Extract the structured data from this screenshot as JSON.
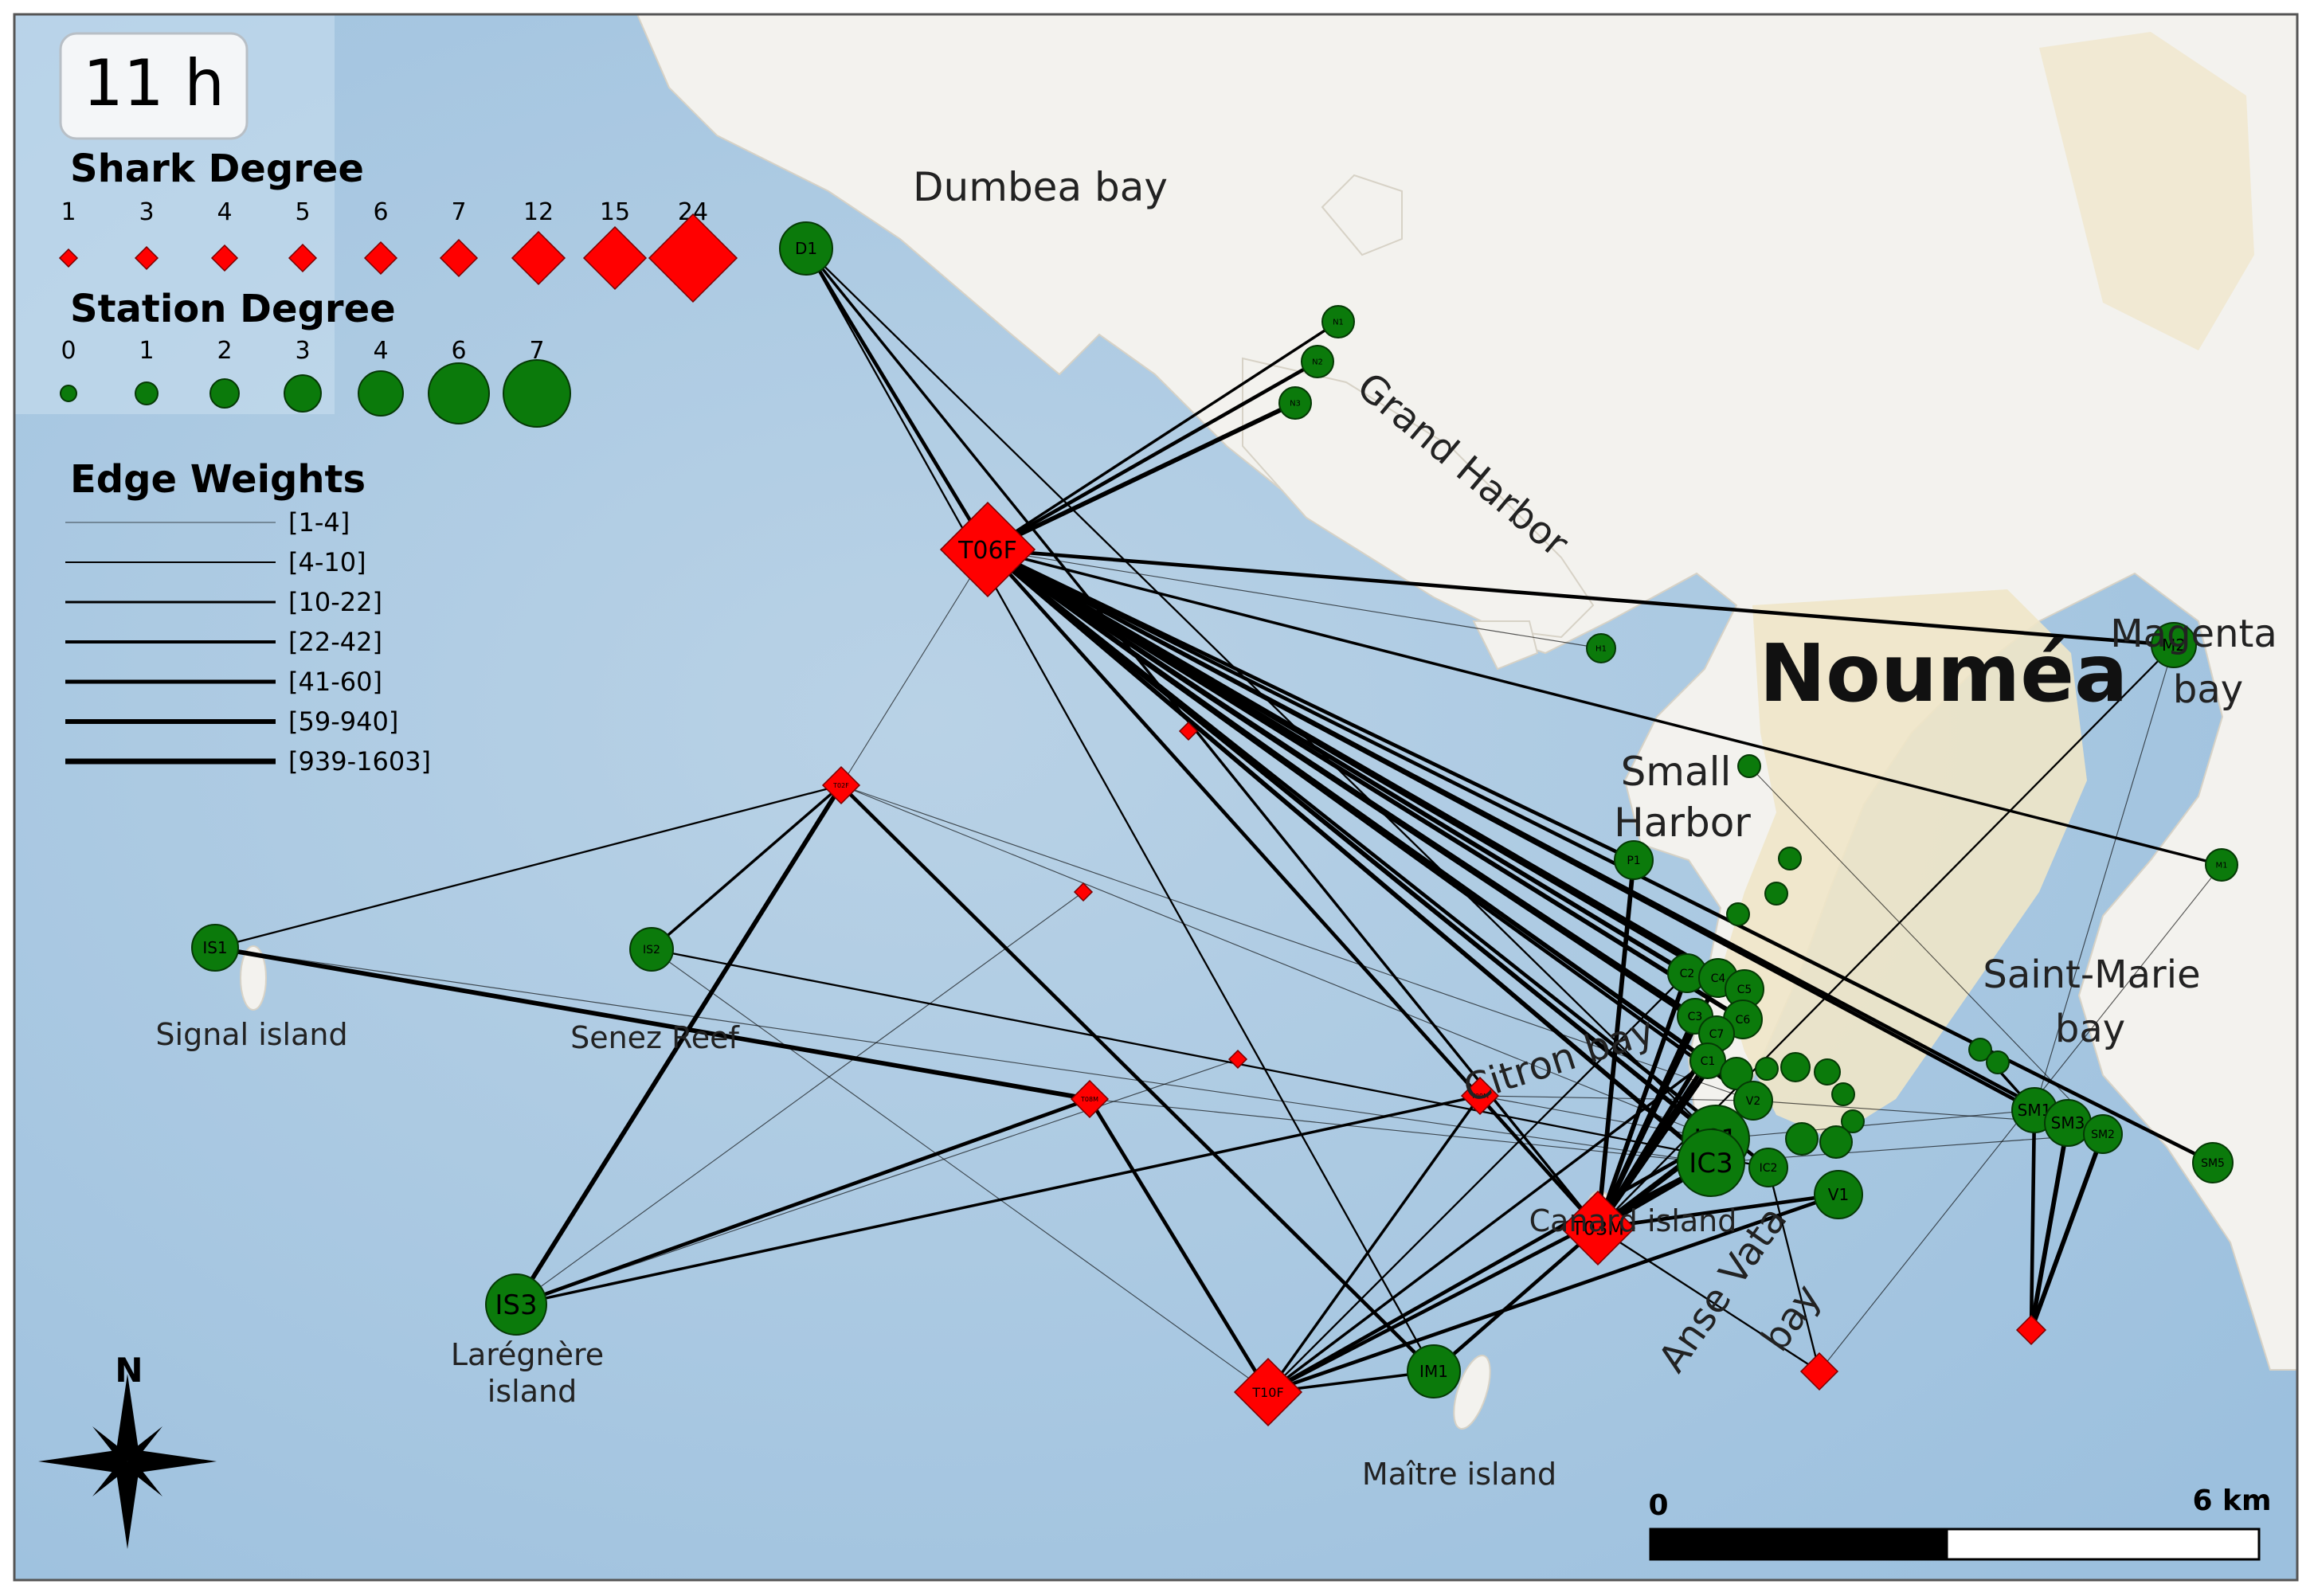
{
  "time_label": "11 h",
  "colors": {
    "shark": "#ff0000",
    "shark_stroke": "#7a0000",
    "station": "#0b7a0b",
    "station_stroke": "#053905",
    "sea": "#a9c8e2",
    "sea_deep": "#8fb6d8",
    "land": "#f2f1ec",
    "urban": "#eee3c0",
    "edge": "#000000"
  },
  "legend": {
    "shark": {
      "title": "Shark Degree",
      "items": [
        {
          "label": "1",
          "s": 22
        },
        {
          "label": "3",
          "s": 28
        },
        {
          "label": "4",
          "s": 32
        },
        {
          "label": "5",
          "s": 34
        },
        {
          "label": "6",
          "s": 40
        },
        {
          "label": "7",
          "s": 46
        },
        {
          "label": "12",
          "s": 66
        },
        {
          "label": "15",
          "s": 78
        },
        {
          "label": "24",
          "s": 110
        }
      ]
    },
    "station": {
      "title": "Station Degree",
      "items": [
        {
          "label": "0",
          "r": 10
        },
        {
          "label": "1",
          "r": 14
        },
        {
          "label": "2",
          "r": 18
        },
        {
          "label": "3",
          "r": 23
        },
        {
          "label": "4",
          "r": 28
        },
        {
          "label": "6",
          "r": 38
        },
        {
          "label": "7",
          "r": 42
        }
      ]
    },
    "edges": {
      "title": "Edge Weights",
      "items": [
        {
          "label": "[1-4]",
          "w": 1
        },
        {
          "label": "[4-10]",
          "w": 2
        },
        {
          "label": "[10-22]",
          "w": 3
        },
        {
          "label": "[22-42]",
          "w": 4
        },
        {
          "label": "[41-60]",
          "w": 5
        },
        {
          "label": "[59-940]",
          "w": 6
        },
        {
          "label": "[939-1603]",
          "w": 7
        }
      ]
    }
  },
  "places": [
    {
      "name": "Dumbea bay",
      "size": 50,
      "anchor": "middle"
    },
    {
      "name": "Grand Harbor",
      "size": 48,
      "anchor": "middle",
      "rotate": 40
    },
    {
      "name": "Nouméa",
      "size": 100,
      "anchor": "middle",
      "bold": true
    },
    {
      "name": "Magenta",
      "size": 48,
      "anchor": "middle"
    },
    {
      "name": "bay",
      "size": 48,
      "anchor": "middle"
    },
    {
      "name": "Small",
      "size": 50,
      "anchor": "middle"
    },
    {
      "name": "Harbor",
      "size": 50,
      "anchor": "middle"
    },
    {
      "name": "Saint-Marie",
      "size": 48,
      "anchor": "middle"
    },
    {
      "name": "bay",
      "size": 48,
      "anchor": "middle"
    },
    {
      "name": "Signal island",
      "size": 38,
      "anchor": "middle"
    },
    {
      "name": "Senez Reef",
      "size": 38,
      "anchor": "middle"
    },
    {
      "name": "Citron bay",
      "size": 48,
      "anchor": "middle",
      "rotate": -18
    },
    {
      "name": "Canard island",
      "size": 38,
      "anchor": "middle"
    },
    {
      "name": "Anse Vata",
      "size": 48,
      "anchor": "middle",
      "rotate": -55
    },
    {
      "name": "bay",
      "size": 48,
      "anchor": "middle",
      "rotate": -55
    },
    {
      "name": "Larégnère",
      "size": 38,
      "anchor": "middle"
    },
    {
      "name": "island",
      "size": 38,
      "anchor": "middle"
    },
    {
      "name": "Maître island",
      "size": 38,
      "anchor": "middle"
    }
  ],
  "stations": [
    {
      "id": "D1",
      "r": 33
    },
    {
      "id": "N1",
      "r": 20
    },
    {
      "id": "N2",
      "r": 20
    },
    {
      "id": "N3",
      "r": 20
    },
    {
      "id": "H1",
      "r": 18
    },
    {
      "id": "M2",
      "r": 28
    },
    {
      "id": "P2",
      "r": 14
    },
    {
      "id": "P1",
      "r": 24
    },
    {
      "id": "P3",
      "r": 14
    },
    {
      "id": "P4",
      "r": 14
    },
    {
      "id": "P5",
      "r": 14
    },
    {
      "id": "M1",
      "r": 20
    },
    {
      "id": "IS1",
      "r": 29
    },
    {
      "id": "IS2",
      "r": 27
    },
    {
      "id": "IS3",
      "r": 38
    },
    {
      "id": "C2",
      "r": 24
    },
    {
      "id": "C4",
      "r": 24
    },
    {
      "id": "C5",
      "r": 24
    },
    {
      "id": "C3",
      "r": 22
    },
    {
      "id": "C6",
      "r": 24
    },
    {
      "id": "C7",
      "r": 22
    },
    {
      "id": "C1",
      "r": 22
    },
    {
      "id": "A1",
      "r": 20
    },
    {
      "id": "A2",
      "r": 14
    },
    {
      "id": "A3",
      "r": 18
    },
    {
      "id": "A4",
      "r": 16
    },
    {
      "id": "A5",
      "r": 14
    },
    {
      "id": "V2",
      "r": 24
    },
    {
      "id": "A6",
      "r": 14
    },
    {
      "id": "A7",
      "r": 14
    },
    {
      "id": "V3",
      "r": 20
    },
    {
      "id": "V4",
      "r": 20
    },
    {
      "id": "IC1",
      "r": 42
    },
    {
      "id": "IC3",
      "r": 42
    },
    {
      "id": "IC2",
      "r": 24
    },
    {
      "id": "V1",
      "r": 30
    },
    {
      "id": "IM1",
      "r": 33
    },
    {
      "id": "SM4",
      "r": 14
    },
    {
      "id": "SM5b",
      "r": 14
    },
    {
      "id": "SM1",
      "r": 28
    },
    {
      "id": "SM3",
      "r": 29
    },
    {
      "id": "SM2",
      "r": 24
    },
    {
      "id": "SM5",
      "r": 25
    }
  ],
  "sharks": [
    {
      "id": "T06F",
      "s": 118
    },
    {
      "id": "T03M",
      "s": 92
    },
    {
      "id": "T10F",
      "s": 84
    },
    {
      "id": "T02F",
      "s": 46
    },
    {
      "id": "T08M",
      "s": 46
    },
    {
      "id": "T09M",
      "s": 46
    },
    {
      "id": "S1",
      "s": 22
    },
    {
      "id": "S2",
      "s": 22
    },
    {
      "id": "S3",
      "s": 22
    },
    {
      "id": "S4",
      "s": 46
    },
    {
      "id": "S5",
      "s": 36
    }
  ],
  "visible_labels": {
    "T06F": "T06F",
    "T03M": "T03M",
    "T10F": "T10F",
    "T02F": "T02F",
    "T08M": "T08M",
    "T09M": "T09M",
    "D1": "D1",
    "IS1": "IS1",
    "IS2": "IS2",
    "IS3": "IS3",
    "IM1": "IM1",
    "M2": "M2",
    "P1": "P1",
    "IC1": "IC1",
    "IC3": "IC3",
    "IC2": "IC2",
    "V1": "V1",
    "V2": "V2",
    "SM1": "SM1",
    "SM2": "SM2",
    "SM3": "SM3",
    "SM5": "SM5",
    "C1": "C1",
    "C2": "C2",
    "C3": "C3",
    "C4": "C4",
    "C5": "C5",
    "C6": "C6",
    "C7": "C7",
    "N1": "N1",
    "N2": "N2",
    "N3": "N3",
    "H1": "H1",
    "M1": "M1"
  },
  "edges": [
    [
      "T06F",
      "D1",
      4
    ],
    [
      "T06F",
      "N1",
      3
    ],
    [
      "T06F",
      "N2",
      4
    ],
    [
      "T06F",
      "N3",
      5
    ],
    [
      "T06F",
      "M2",
      4
    ],
    [
      "T06F",
      "M1",
      3
    ],
    [
      "T06F",
      "H1",
      1
    ],
    [
      "T06F",
      "T02F",
      1
    ],
    [
      "T06F",
      "C2",
      5
    ],
    [
      "T06F",
      "C4",
      5
    ],
    [
      "T06F",
      "C5",
      5
    ],
    [
      "T06F",
      "C6",
      5
    ],
    [
      "T06F",
      "C3",
      5
    ],
    [
      "T06F",
      "C7",
      5
    ],
    [
      "T06F",
      "C1",
      5
    ],
    [
      "T06F",
      "IC1",
      5
    ],
    [
      "T06F",
      "IC3",
      5
    ],
    [
      "T06F",
      "IC2",
      4
    ],
    [
      "T06F",
      "V2",
      4
    ],
    [
      "T06F",
      "SM1",
      4
    ],
    [
      "T06F",
      "SM3",
      4
    ],
    [
      "T06F",
      "SM5",
      4
    ],
    [
      "T06F",
      "P1",
      4
    ],
    [
      "T06F",
      "T03M",
      4
    ],
    [
      "D1",
      "T03M",
      3
    ],
    [
      "D1",
      "IM1",
      2
    ],
    [
      "D1",
      "IC1",
      2
    ],
    [
      "T02F",
      "IS1",
      2
    ],
    [
      "T02F",
      "IS2",
      3
    ],
    [
      "T02F",
      "IS3",
      5
    ],
    [
      "T02F",
      "IM1",
      4
    ],
    [
      "T02F",
      "IC1",
      1
    ],
    [
      "T02F",
      "V2",
      1
    ],
    [
      "IS1",
      "T08M",
      5
    ],
    [
      "IS1",
      "IC3",
      1
    ],
    [
      "IS2",
      "IC2",
      2
    ],
    [
      "IS2",
      "T10F",
      1
    ],
    [
      "IS3",
      "T08M",
      4
    ],
    [
      "IS3",
      "S1",
      1
    ],
    [
      "IS3",
      "T09M",
      3
    ],
    [
      "IS3",
      "S2",
      1
    ],
    [
      "T08M",
      "T10F",
      4
    ],
    [
      "T08M",
      "IC3",
      1
    ],
    [
      "T09M",
      "T10F",
      3
    ],
    [
      "T09M",
      "IC1",
      1
    ],
    [
      "T09M",
      "V2",
      1
    ],
    [
      "T10F",
      "IC1",
      4
    ],
    [
      "T10F",
      "IC3",
      4
    ],
    [
      "T10F",
      "V1",
      4
    ],
    [
      "T10F",
      "C1",
      3
    ],
    [
      "T10F",
      "IM1",
      3
    ],
    [
      "T10F",
      "C2",
      2
    ],
    [
      "T03M",
      "P1",
      5
    ],
    [
      "T03M",
      "C2",
      5
    ],
    [
      "T03M",
      "C4",
      5
    ],
    [
      "T03M",
      "C3",
      5
    ],
    [
      "T03M",
      "C6",
      5
    ],
    [
      "T03M",
      "C7",
      5
    ],
    [
      "T03M",
      "C1",
      5
    ],
    [
      "T03M",
      "IC1",
      6
    ],
    [
      "T03M",
      "IC3",
      6
    ],
    [
      "T03M",
      "IM1",
      4
    ],
    [
      "T03M",
      "V1",
      4
    ],
    [
      "T03M",
      "M2",
      2
    ],
    [
      "T03M",
      "S4",
      2
    ],
    [
      "S4",
      "M1",
      1
    ],
    [
      "S4",
      "IC2",
      2
    ],
    [
      "SM4",
      "SM1",
      3
    ],
    [
      "S5",
      "SM1",
      4
    ],
    [
      "S5",
      "SM3",
      5
    ],
    [
      "S5",
      "SM2",
      5
    ],
    [
      "SM2",
      "P2",
      1
    ],
    [
      "SM1",
      "M2",
      1
    ],
    [
      "IC1",
      "SM1",
      1
    ],
    [
      "IC3",
      "SM2",
      1
    ],
    [
      "V2",
      "SM3",
      1
    ]
  ]
}
